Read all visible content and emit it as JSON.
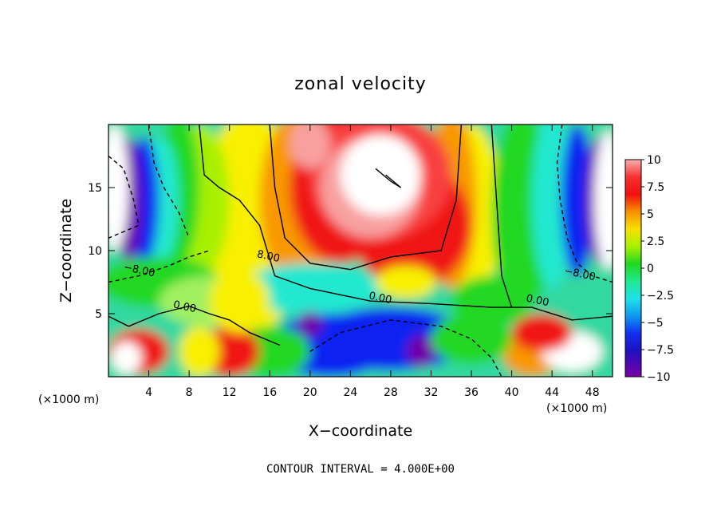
{
  "chart_data": {
    "type": "heatmap",
    "title": "zonal velocity",
    "xlabel": "X−coordinate",
    "ylabel": "Z−coordinate",
    "x_unit": "(×1000 m)",
    "z_unit": "(×1000 m)",
    "xlim": [
      0,
      50
    ],
    "ylim": [
      0,
      20
    ],
    "x_ticks": [
      4,
      8,
      12,
      16,
      20,
      24,
      28,
      32,
      36,
      40,
      44,
      48
    ],
    "x_tick_labels": [
      "4",
      "8",
      "12",
      "16",
      "20",
      "24",
      "28",
      "32",
      "36",
      "40",
      "44",
      "48"
    ],
    "y_ticks": [
      5,
      10,
      15
    ],
    "y_tick_labels": [
      "5",
      "10",
      "15"
    ],
    "colorbar": {
      "min": -10,
      "max": 10,
      "ticks": [
        10,
        7.5,
        5,
        2.5,
        0,
        -2.5,
        -5,
        -7.5,
        -10
      ],
      "tick_labels": [
        "10",
        "7.5",
        "5",
        "2.5",
        "0",
        "−2.5",
        "−5",
        "−7.5",
        "−10"
      ]
    },
    "contour_labels": [
      {
        "text": "8.00",
        "x": 15.8,
        "z": 9.3
      },
      {
        "text": "−8.00",
        "x": 3.0,
        "z": 8.2
      },
      {
        "text": "0.00",
        "x": 7.5,
        "z": 5.3
      },
      {
        "text": "0.00",
        "x": 26.9,
        "z": 6.0
      },
      {
        "text": "0.00",
        "x": 42.5,
        "z": 5.8
      },
      {
        "text": "−8.00",
        "x": 46.7,
        "z": 7.9
      }
    ],
    "contour_interval": "CONTOUR INTERVAL = 4.000E+00",
    "colors": {
      "white": "#ffffff",
      "pink": "#f8a0a0",
      "red": "#f01818",
      "orange": "#f89800",
      "yellow": "#f8f000",
      "green": "#20d820",
      "cyan": "#20e8d0",
      "blue": "#1020f0",
      "purple": "#7000a8"
    }
  }
}
